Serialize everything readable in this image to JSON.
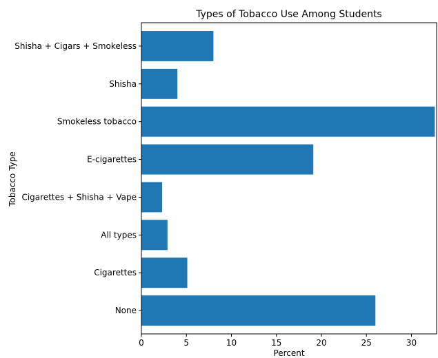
{
  "chart_data": {
    "type": "bar",
    "orientation": "horizontal",
    "title": "Types of Tobacco Use Among Students",
    "xlabel": "Percent",
    "ylabel": "Tobacco Type",
    "categories": [
      "None",
      "Cigarettes",
      "All types",
      "Cigarettes + Shisha + Vape",
      "E-cigarettes",
      "Smokeless tobacco",
      "Shisha",
      "Shisha + Cigars + Smokeless"
    ],
    "values": [
      26.0,
      5.1,
      2.9,
      2.3,
      19.1,
      32.6,
      4.0,
      8.0
    ],
    "xlim": [
      0,
      32.8
    ],
    "xticks": [
      0,
      5,
      10,
      15,
      20,
      25,
      30
    ],
    "bar_color": "#1f77b4",
    "grid": false
  }
}
